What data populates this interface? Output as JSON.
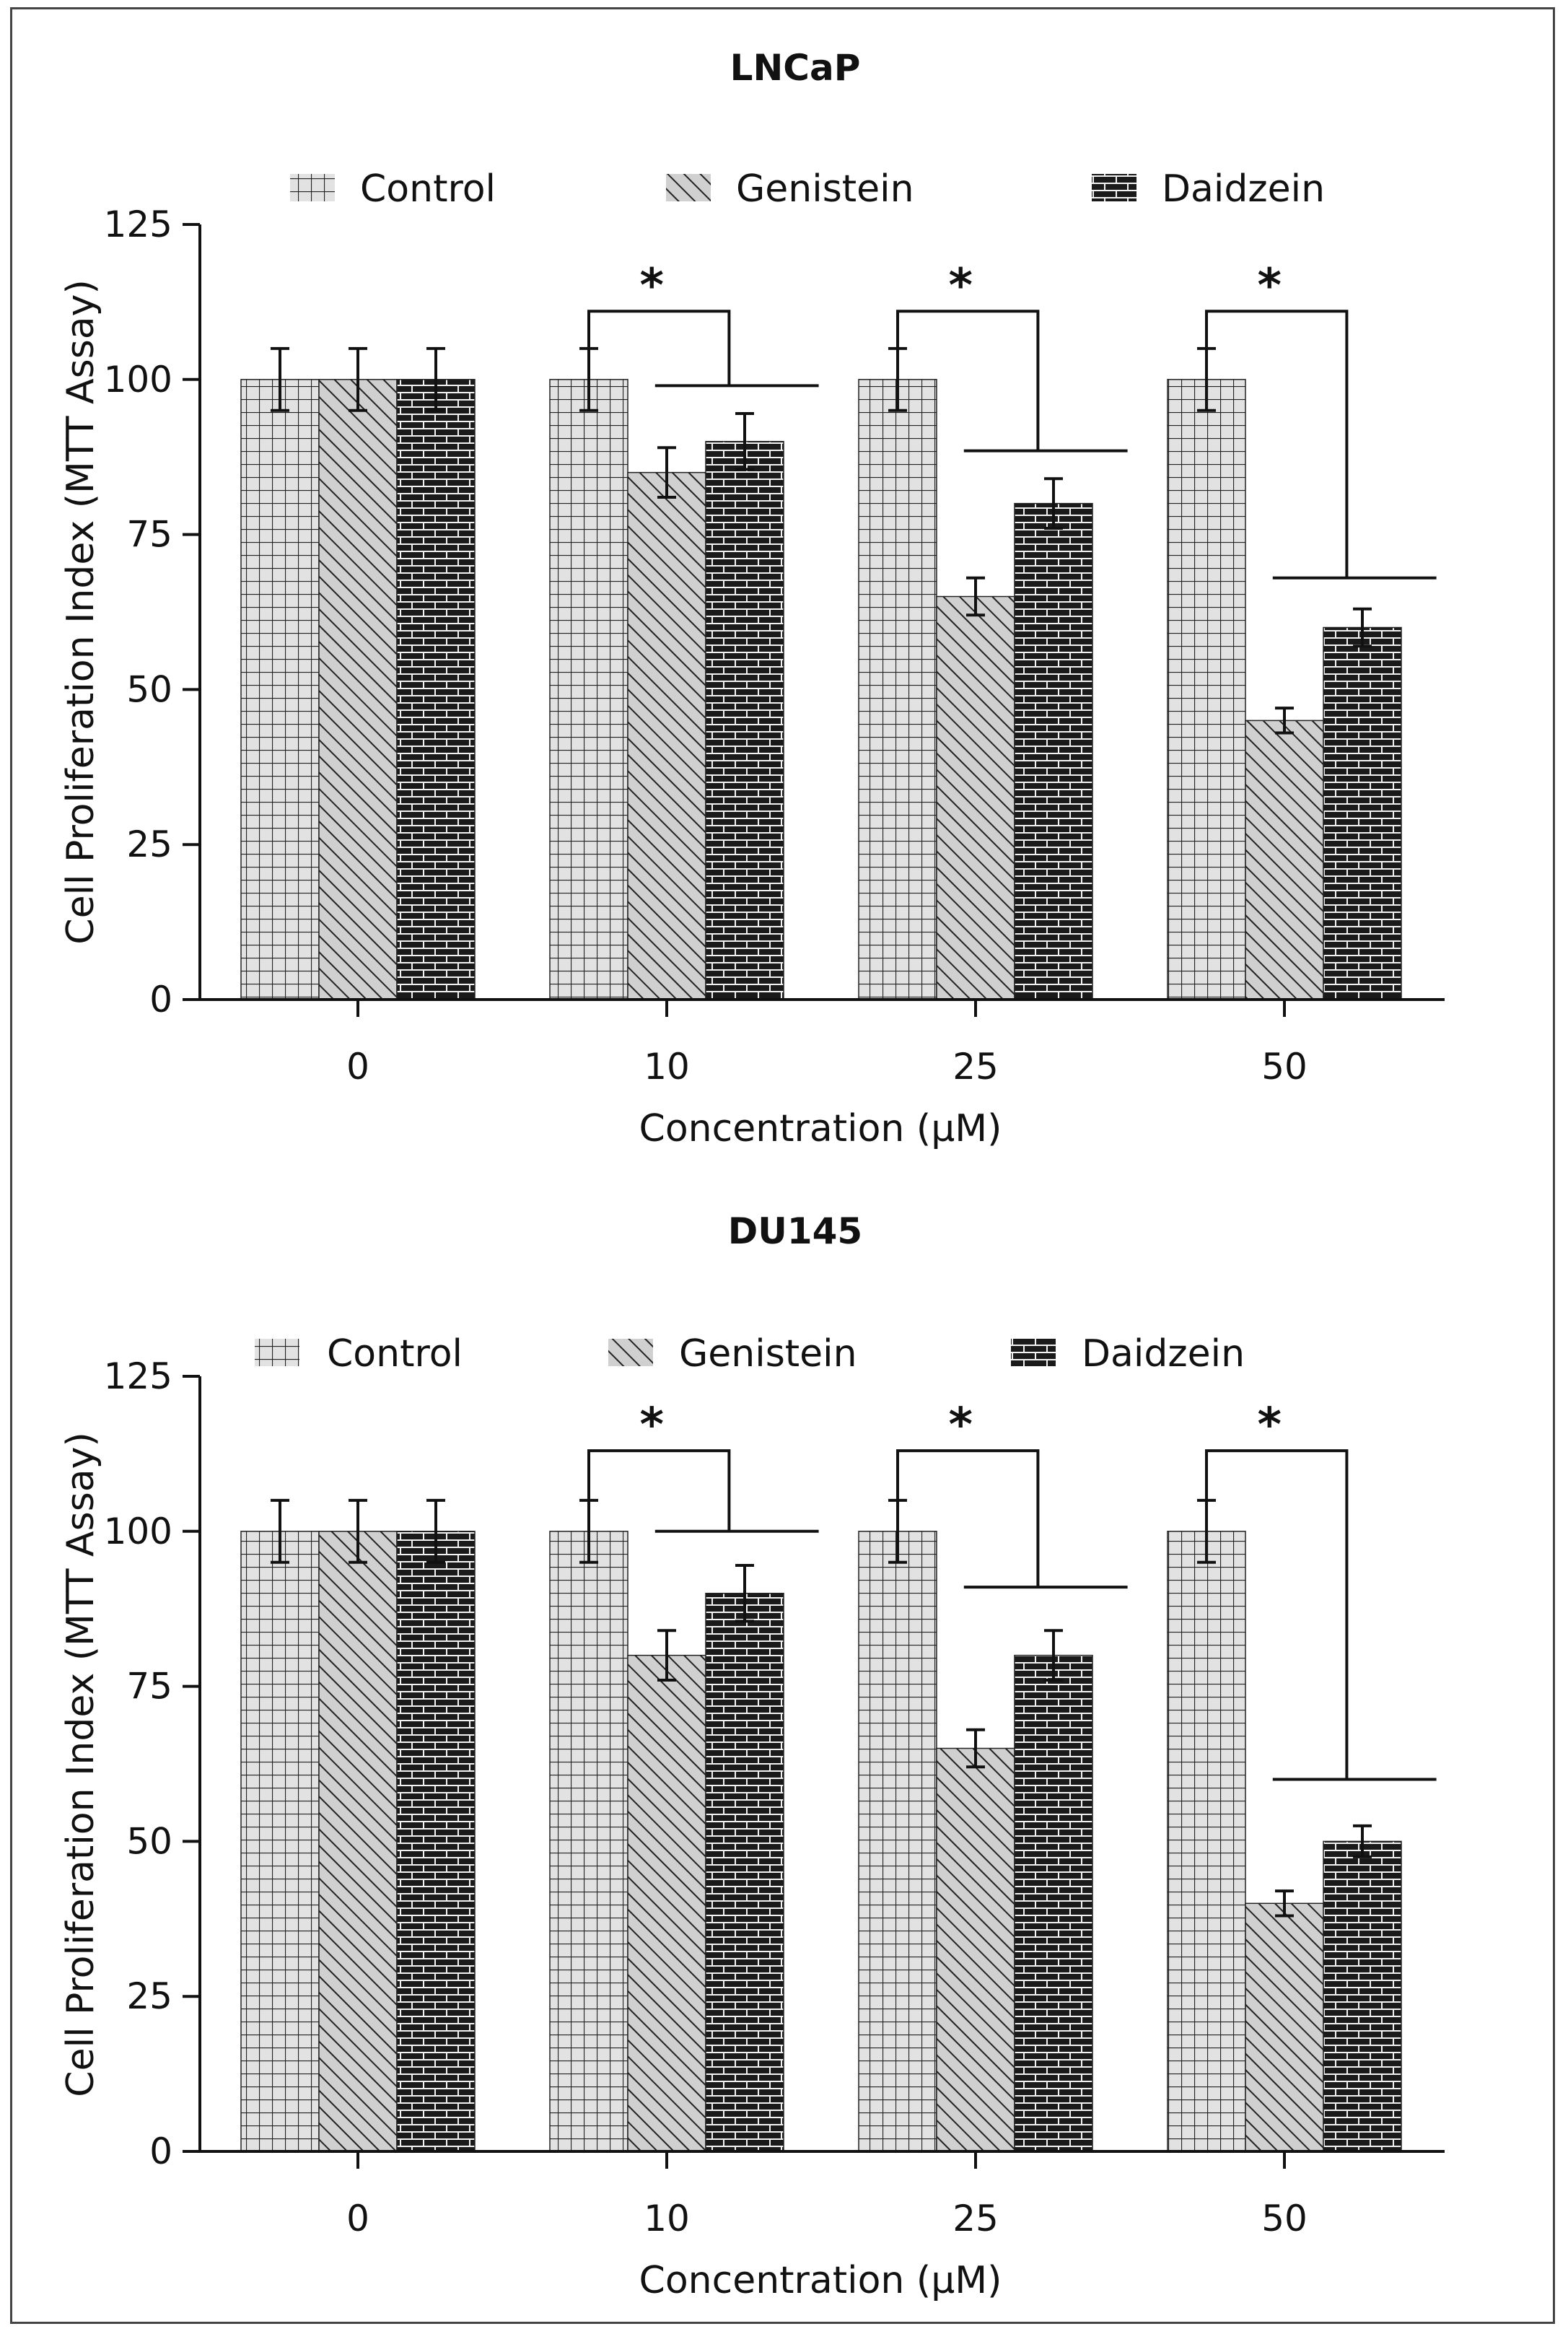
{
  "figure": {
    "colors": {
      "control_fill": "#e2e2e2",
      "genistein_fill": "#cfcfcf",
      "daidzein_fill": "#1a1a1a",
      "pattern_line": "#222222",
      "axis": "#111111"
    }
  },
  "chart_data": [
    {
      "type": "bar",
      "title": "LNCaP",
      "xlabel": "Concentration (μM)",
      "ylabel": "Cell Proliferation Index (MTT Assay)",
      "ylim": [
        0,
        125
      ],
      "yticks": [
        "0",
        "25",
        "50",
        "75",
        "100",
        "125"
      ],
      "categories": [
        "0",
        "10",
        "25",
        "50"
      ],
      "legend_position": "top",
      "series": [
        {
          "name": "Control",
          "pattern": "grid",
          "values": [
            100,
            100,
            100,
            100
          ],
          "errors": [
            5,
            5,
            5,
            5
          ]
        },
        {
          "name": "Genistein",
          "pattern": "diagonal",
          "values": [
            100,
            85,
            65,
            45
          ],
          "errors": [
            5,
            4,
            3,
            2
          ]
        },
        {
          "name": "Daidzein",
          "pattern": "brick",
          "values": [
            100,
            90,
            80,
            60
          ],
          "errors": [
            5,
            4.5,
            4,
            3
          ]
        }
      ],
      "significance": [
        {
          "category": "10",
          "label": "*",
          "bracket_y": 111,
          "bar_y": 99,
          "right_y": 99
        },
        {
          "category": "25",
          "label": "*",
          "bracket_y": 111,
          "bar_y": 88.5,
          "right_y": 88.5
        },
        {
          "category": "50",
          "label": "*",
          "bracket_y": 111,
          "bar_y": 68,
          "right_y": 68
        }
      ]
    },
    {
      "type": "bar",
      "title": "DU145",
      "xlabel": "Concentration (μM)",
      "ylabel": "Cell Proliferation Index (MTT Assay)",
      "ylim": [
        0,
        125
      ],
      "yticks": [
        "0",
        "25",
        "50",
        "75",
        "100",
        "125"
      ],
      "categories": [
        "0",
        "10",
        "25",
        "50"
      ],
      "legend_position": "top",
      "series": [
        {
          "name": "Control",
          "pattern": "grid",
          "values": [
            100,
            100,
            100,
            100
          ],
          "errors": [
            5,
            5,
            5,
            5
          ]
        },
        {
          "name": "Genistein",
          "pattern": "diagonal",
          "values": [
            100,
            80,
            65,
            40
          ],
          "errors": [
            5,
            4,
            3,
            2
          ]
        },
        {
          "name": "Daidzein",
          "pattern": "brick",
          "values": [
            100,
            90,
            80,
            50
          ],
          "errors": [
            5,
            4.5,
            4,
            2.5
          ]
        }
      ],
      "significance": [
        {
          "category": "10",
          "label": "*",
          "bracket_y": 113,
          "bar_y": 100,
          "right_y": 100
        },
        {
          "category": "25",
          "label": "*",
          "bracket_y": 113,
          "bar_y": 91,
          "right_y": 91
        },
        {
          "category": "50",
          "label": "*",
          "bracket_y": 113,
          "bar_y": 60,
          "right_y": 60
        }
      ]
    }
  ]
}
